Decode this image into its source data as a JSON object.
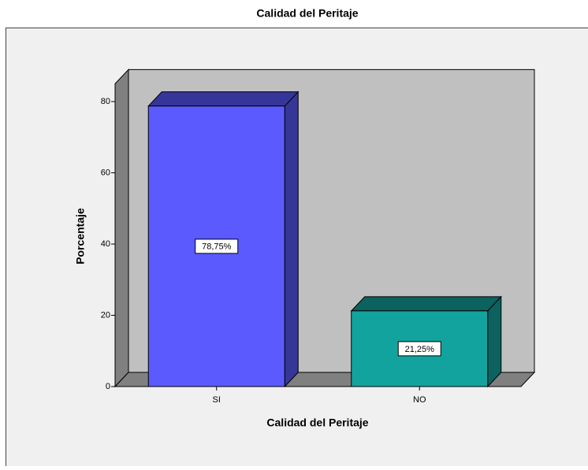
{
  "chart_data": {
    "type": "bar3d",
    "title": "Calidad del Peritaje",
    "x_label": "Calidad del Peritaje",
    "y_label": "Porcentaje",
    "categories": [
      "SI",
      "NO"
    ],
    "values": [
      78.75,
      21.25
    ],
    "value_labels": [
      "78,75%",
      "21,25%"
    ],
    "colors": [
      "#5a5aff",
      "#12a39f"
    ],
    "ylim": [
      0,
      85
    ],
    "yticks": [
      0,
      20,
      40,
      60,
      80
    ]
  }
}
